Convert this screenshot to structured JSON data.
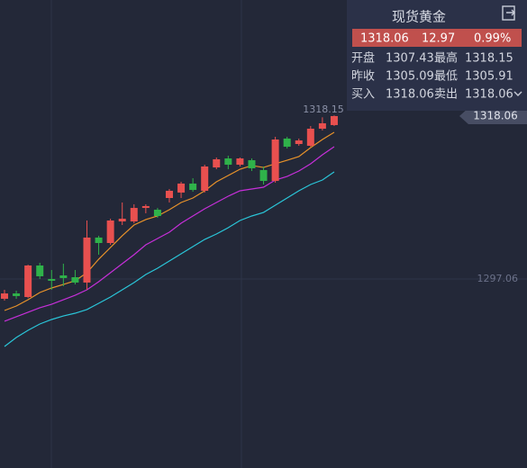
{
  "chart_data": {
    "type": "candlestick",
    "open": [
      1294.51,
      1295.2,
      1294.74,
      1298.8,
      1297.06,
      1297.52,
      1297.29,
      1296.6,
      1302.4,
      1301.7,
      1304.48,
      1304.48,
      1306.22,
      1305.99,
      1307.5,
      1308.2,
      1309.36,
      1308.43,
      1311.44,
      1312.6,
      1311.79,
      1312.37,
      1311.1,
      1309.7,
      1315.16,
      1314.46,
      1314.23,
      1316.43,
      1316.9
    ],
    "high": [
      1295.67,
      1295.55,
      1298.9,
      1299.15,
      1298.22,
      1299.03,
      1298.22,
      1304.6,
      1302.63,
      1304.83,
      1306.92,
      1306.69,
      1306.69,
      1306.22,
      1308.66,
      1309.59,
      1310.05,
      1311.79,
      1312.72,
      1312.95,
      1312.72,
      1312.6,
      1311.56,
      1315.39,
      1315.39,
      1315.16,
      1316.78,
      1317.9,
      1318.15
    ],
    "low": [
      1294.28,
      1294.51,
      1294.6,
      1297.06,
      1295.67,
      1296.13,
      1296.36,
      1295.67,
      1300.19,
      1301.47,
      1304.02,
      1304.25,
      1305.53,
      1304.95,
      1306.92,
      1307.5,
      1308.31,
      1308.2,
      1311.21,
      1311.21,
      1311.56,
      1310.98,
      1309.24,
      1309.47,
      1313.88,
      1314.23,
      1314.11,
      1316.2,
      1316.78
    ],
    "close": [
      1295.2,
      1294.86,
      1298.8,
      1297.41,
      1296.83,
      1297.18,
      1296.6,
      1302.4,
      1301.7,
      1304.6,
      1304.83,
      1306.22,
      1306.46,
      1305.18,
      1308.43,
      1309.36,
      1308.54,
      1311.56,
      1312.49,
      1311.79,
      1312.6,
      1311.33,
      1309.7,
      1315.04,
      1314.11,
      1314.92,
      1316.43,
      1317.13,
      1318.06
    ],
    "up_color": "#e8504f",
    "down_color": "#2fb24a",
    "series": [
      {
        "color": "#e8922a",
        "values": [
          1293.0,
          1293.58,
          1294.39,
          1295.32,
          1295.9,
          1296.36,
          1296.83,
          1297.87,
          1299.61,
          1301.12,
          1302.63,
          1304.02,
          1304.72,
          1305.18,
          1305.99,
          1306.92,
          1307.5,
          1308.43,
          1309.59,
          1310.4,
          1311.21,
          1311.68,
          1311.44,
          1311.91,
          1312.37,
          1312.84,
          1314.0,
          1315.04,
          1315.97
        ]
      },
      {
        "color": "#c62fd9",
        "values": [
          1291.61,
          1292.19,
          1292.77,
          1293.35,
          1293.81,
          1294.39,
          1294.97,
          1295.67,
          1296.71,
          1297.87,
          1299.03,
          1300.19,
          1301.47,
          1302.28,
          1303.09,
          1304.25,
          1305.18,
          1306.11,
          1306.92,
          1307.73,
          1308.43,
          1308.66,
          1308.89,
          1309.82,
          1310.28,
          1310.98,
          1311.91,
          1313.07,
          1314.11
        ]
      },
      {
        "color": "#2ac6d9",
        "values": [
          1288.36,
          1289.52,
          1290.45,
          1291.26,
          1291.84,
          1292.3,
          1292.65,
          1293.12,
          1293.93,
          1294.74,
          1295.67,
          1296.6,
          1297.64,
          1298.45,
          1299.38,
          1300.31,
          1301.24,
          1302.16,
          1302.86,
          1303.67,
          1304.6,
          1305.18,
          1305.64,
          1306.57,
          1307.5,
          1308.43,
          1309.24,
          1309.82,
          1310.86
        ]
      }
    ],
    "ylim": [
      1272.7,
      1333.02
    ],
    "yticks": [
      1297.06
    ],
    "grid": true
  },
  "panel": {
    "title": "现货黄金",
    "quote": [
      "1318.06",
      "12.97",
      "0.99%"
    ],
    "rows": [
      [
        "开盘",
        "1307.43",
        "最高",
        "1318.15"
      ],
      [
        "昨收",
        "1305.09",
        "最低",
        "1305.91"
      ],
      [
        "买入",
        "1318.06",
        "卖出",
        "1318.06"
      ]
    ]
  }
}
